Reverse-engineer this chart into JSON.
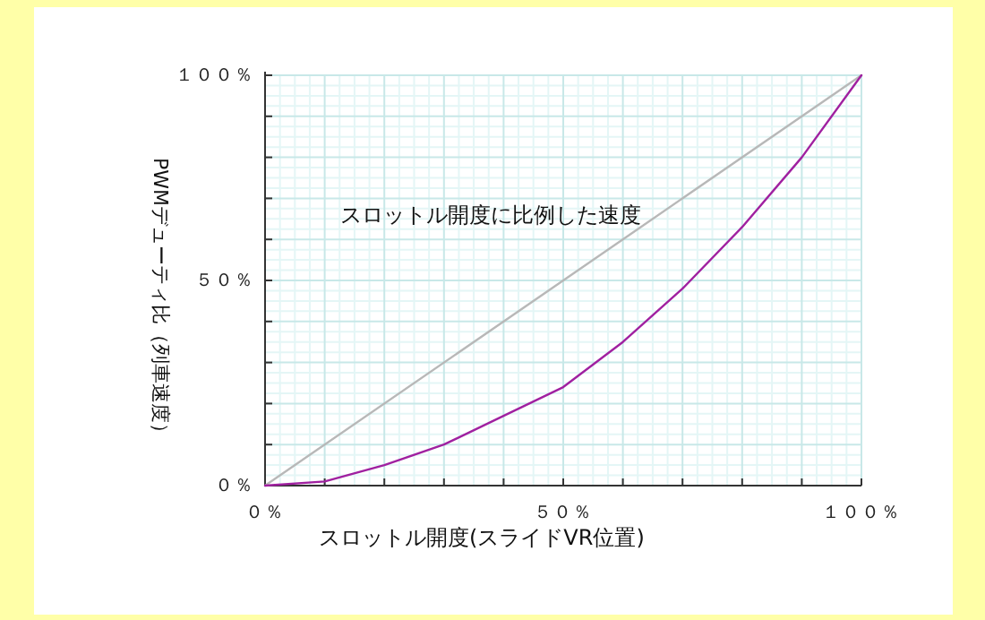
{
  "chart_data": {
    "type": "line",
    "xlabel": "スロットル開度(スライドVR位置)",
    "ylabel": "PWMデューティ比（列車速度）",
    "x": [
      0,
      10,
      20,
      30,
      40,
      50,
      60,
      70,
      80,
      90,
      100
    ],
    "series": [
      {
        "color": "#b8b8b8",
        "x": [
          0,
          100
        ],
        "values": [
          0,
          100
        ]
      },
      {
        "color": "#a020a0",
        "values": [
          0,
          1,
          5,
          10,
          17,
          24,
          35,
          48,
          63,
          80,
          100
        ]
      }
    ],
    "annotations": [
      "スロットル開度に比例した速度"
    ],
    "xlim": [
      0,
      100
    ],
    "ylim": [
      0,
      100
    ],
    "xticks": [
      {
        "value": 0,
        "label": "０％"
      },
      {
        "value": 10,
        "label": null
      },
      {
        "value": 20,
        "label": null
      },
      {
        "value": 30,
        "label": null
      },
      {
        "value": 40,
        "label": null
      },
      {
        "value": 50,
        "label": "５０％"
      },
      {
        "value": 60,
        "label": null
      },
      {
        "value": 70,
        "label": null
      },
      {
        "value": 80,
        "label": null
      },
      {
        "value": 90,
        "label": null
      },
      {
        "value": 100,
        "label": "１００％"
      }
    ],
    "yticks": [
      {
        "value": 0,
        "label": "０％"
      },
      {
        "value": 10,
        "label": null
      },
      {
        "value": 20,
        "label": null
      },
      {
        "value": 30,
        "label": null
      },
      {
        "value": 40,
        "label": null
      },
      {
        "value": 50,
        "label": "５０％"
      },
      {
        "value": 60,
        "label": null
      },
      {
        "value": 70,
        "label": null
      },
      {
        "value": 80,
        "label": null
      },
      {
        "value": 90,
        "label": null
      },
      {
        "value": 100,
        "label": "１００％"
      }
    ],
    "grid": true,
    "marker": "none",
    "line_style": "solid"
  }
}
